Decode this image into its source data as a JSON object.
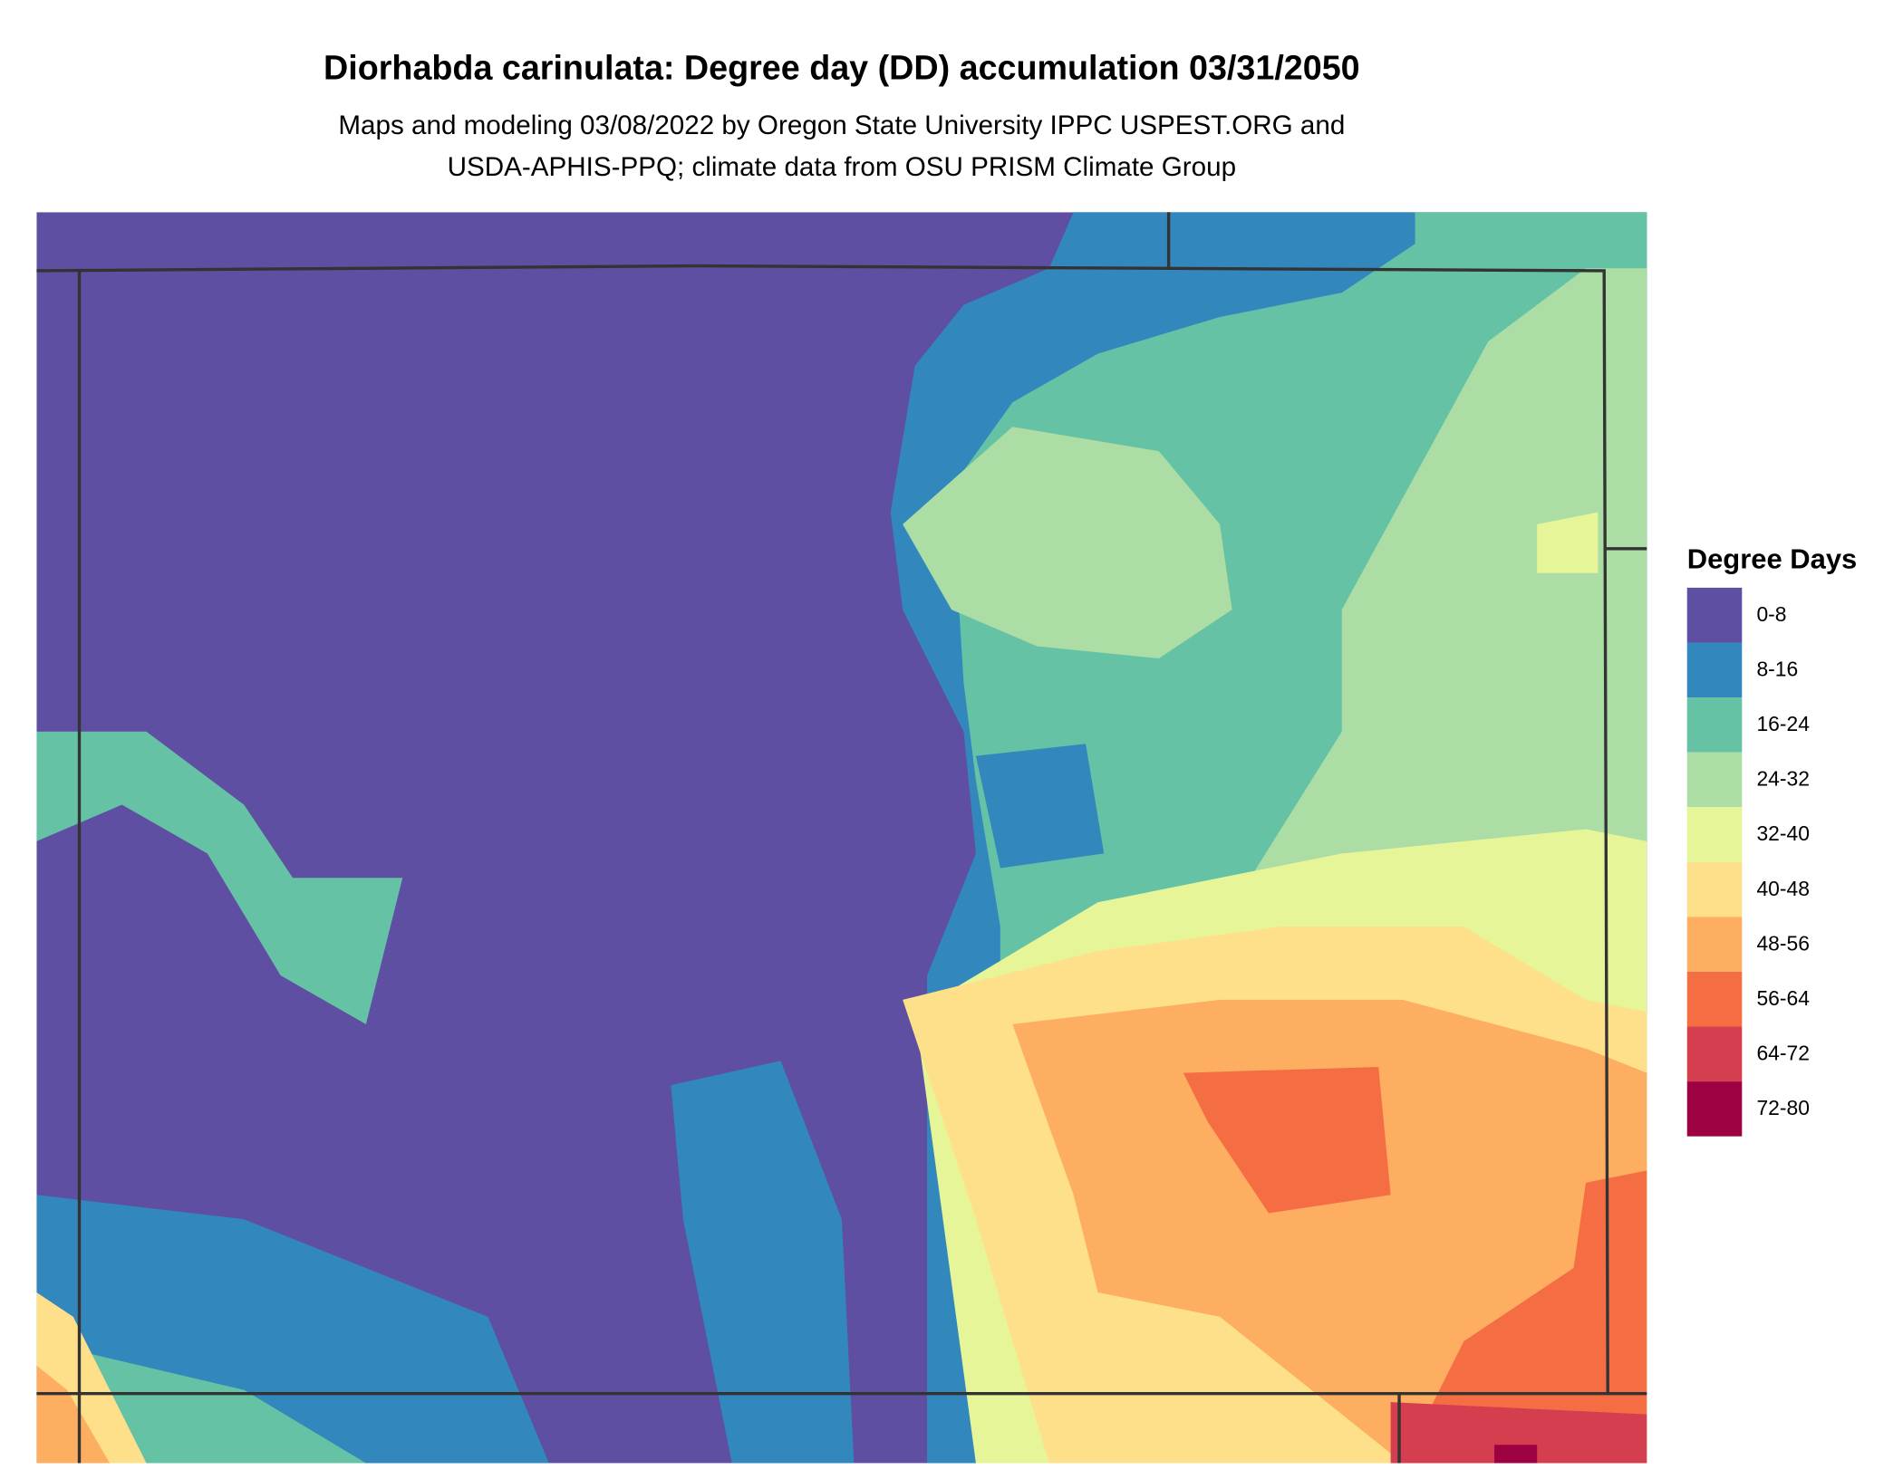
{
  "title": "Diorhabda carinulata: Degree day (DD) accumulation 03/31/2050",
  "subtitle": [
    "Maps and modeling 03/08/2022 by Oregon State University IPPC USPEST.ORG and",
    "USDA-APHIS-PPQ; climate data from OSU PRISM Climate Group"
  ],
  "legend": {
    "title": "Degree Days",
    "items": [
      {
        "label": "0-8",
        "color": "#5E4FA2"
      },
      {
        "label": "8-16",
        "color": "#3288BD"
      },
      {
        "label": "16-24",
        "color": "#66C2A5"
      },
      {
        "label": "24-32",
        "color": "#ABDDA4"
      },
      {
        "label": "32-40",
        "color": "#E6F598"
      },
      {
        "label": "40-48",
        "color": "#FEE08B"
      },
      {
        "label": "48-56",
        "color": "#FDAE61"
      },
      {
        "label": "56-64",
        "color": "#F46D43"
      },
      {
        "label": "64-72",
        "color": "#D53E4F"
      },
      {
        "label": "72-80",
        "color": "#9E0142"
      }
    ]
  }
}
